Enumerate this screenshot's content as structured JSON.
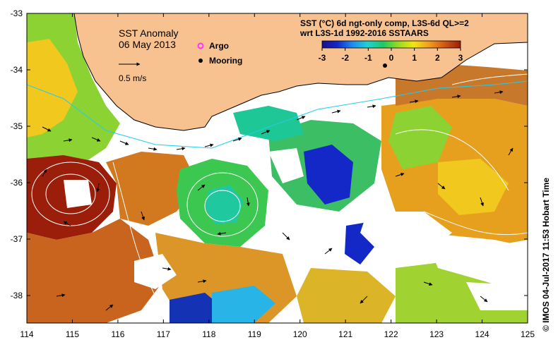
{
  "map": {
    "title": "SST Anomaly",
    "date": "06 May 2013",
    "velocity_scale_label": "0.5 m/s",
    "legend": {
      "argo_label": "Argo",
      "mooring_label": "Mooring",
      "argo_color": "#ff33ff",
      "mooring_color": "#000000"
    },
    "product_line1": "SST (°C) 6d ngt-only comp, L3S-6d QL>=2",
    "product_line2": "wrt L3S-1d 1992-2016 SSTAARS",
    "colorbar": {
      "min": -3,
      "max": 3,
      "ticks": [
        "-3",
        "-2",
        "-1",
        "0",
        "1",
        "2",
        "3"
      ],
      "colors": [
        "#1a0f8c",
        "#1428c8",
        "#1e8cf0",
        "#20d2d2",
        "#1ec864",
        "#96dc1e",
        "#f0e614",
        "#f0a01e",
        "#d25a14",
        "#9a1e0a"
      ]
    },
    "x_axis": {
      "ticks": [
        "114",
        "115",
        "116",
        "117",
        "118",
        "119",
        "120",
        "121",
        "122",
        "123",
        "124",
        "125"
      ]
    },
    "y_axis": {
      "ticks": [
        "-33",
        "-34",
        "-35",
        "-36",
        "-37",
        "-38"
      ]
    },
    "credit": "© IMOS 04-Jul-2017 11:53 Hobart Time",
    "colors": {
      "land": "#f7c28f",
      "no_data": "#ffffff",
      "current_arrow": "#000000",
      "contour": "#ffffff",
      "shelf_line": "#22ccee"
    }
  }
}
